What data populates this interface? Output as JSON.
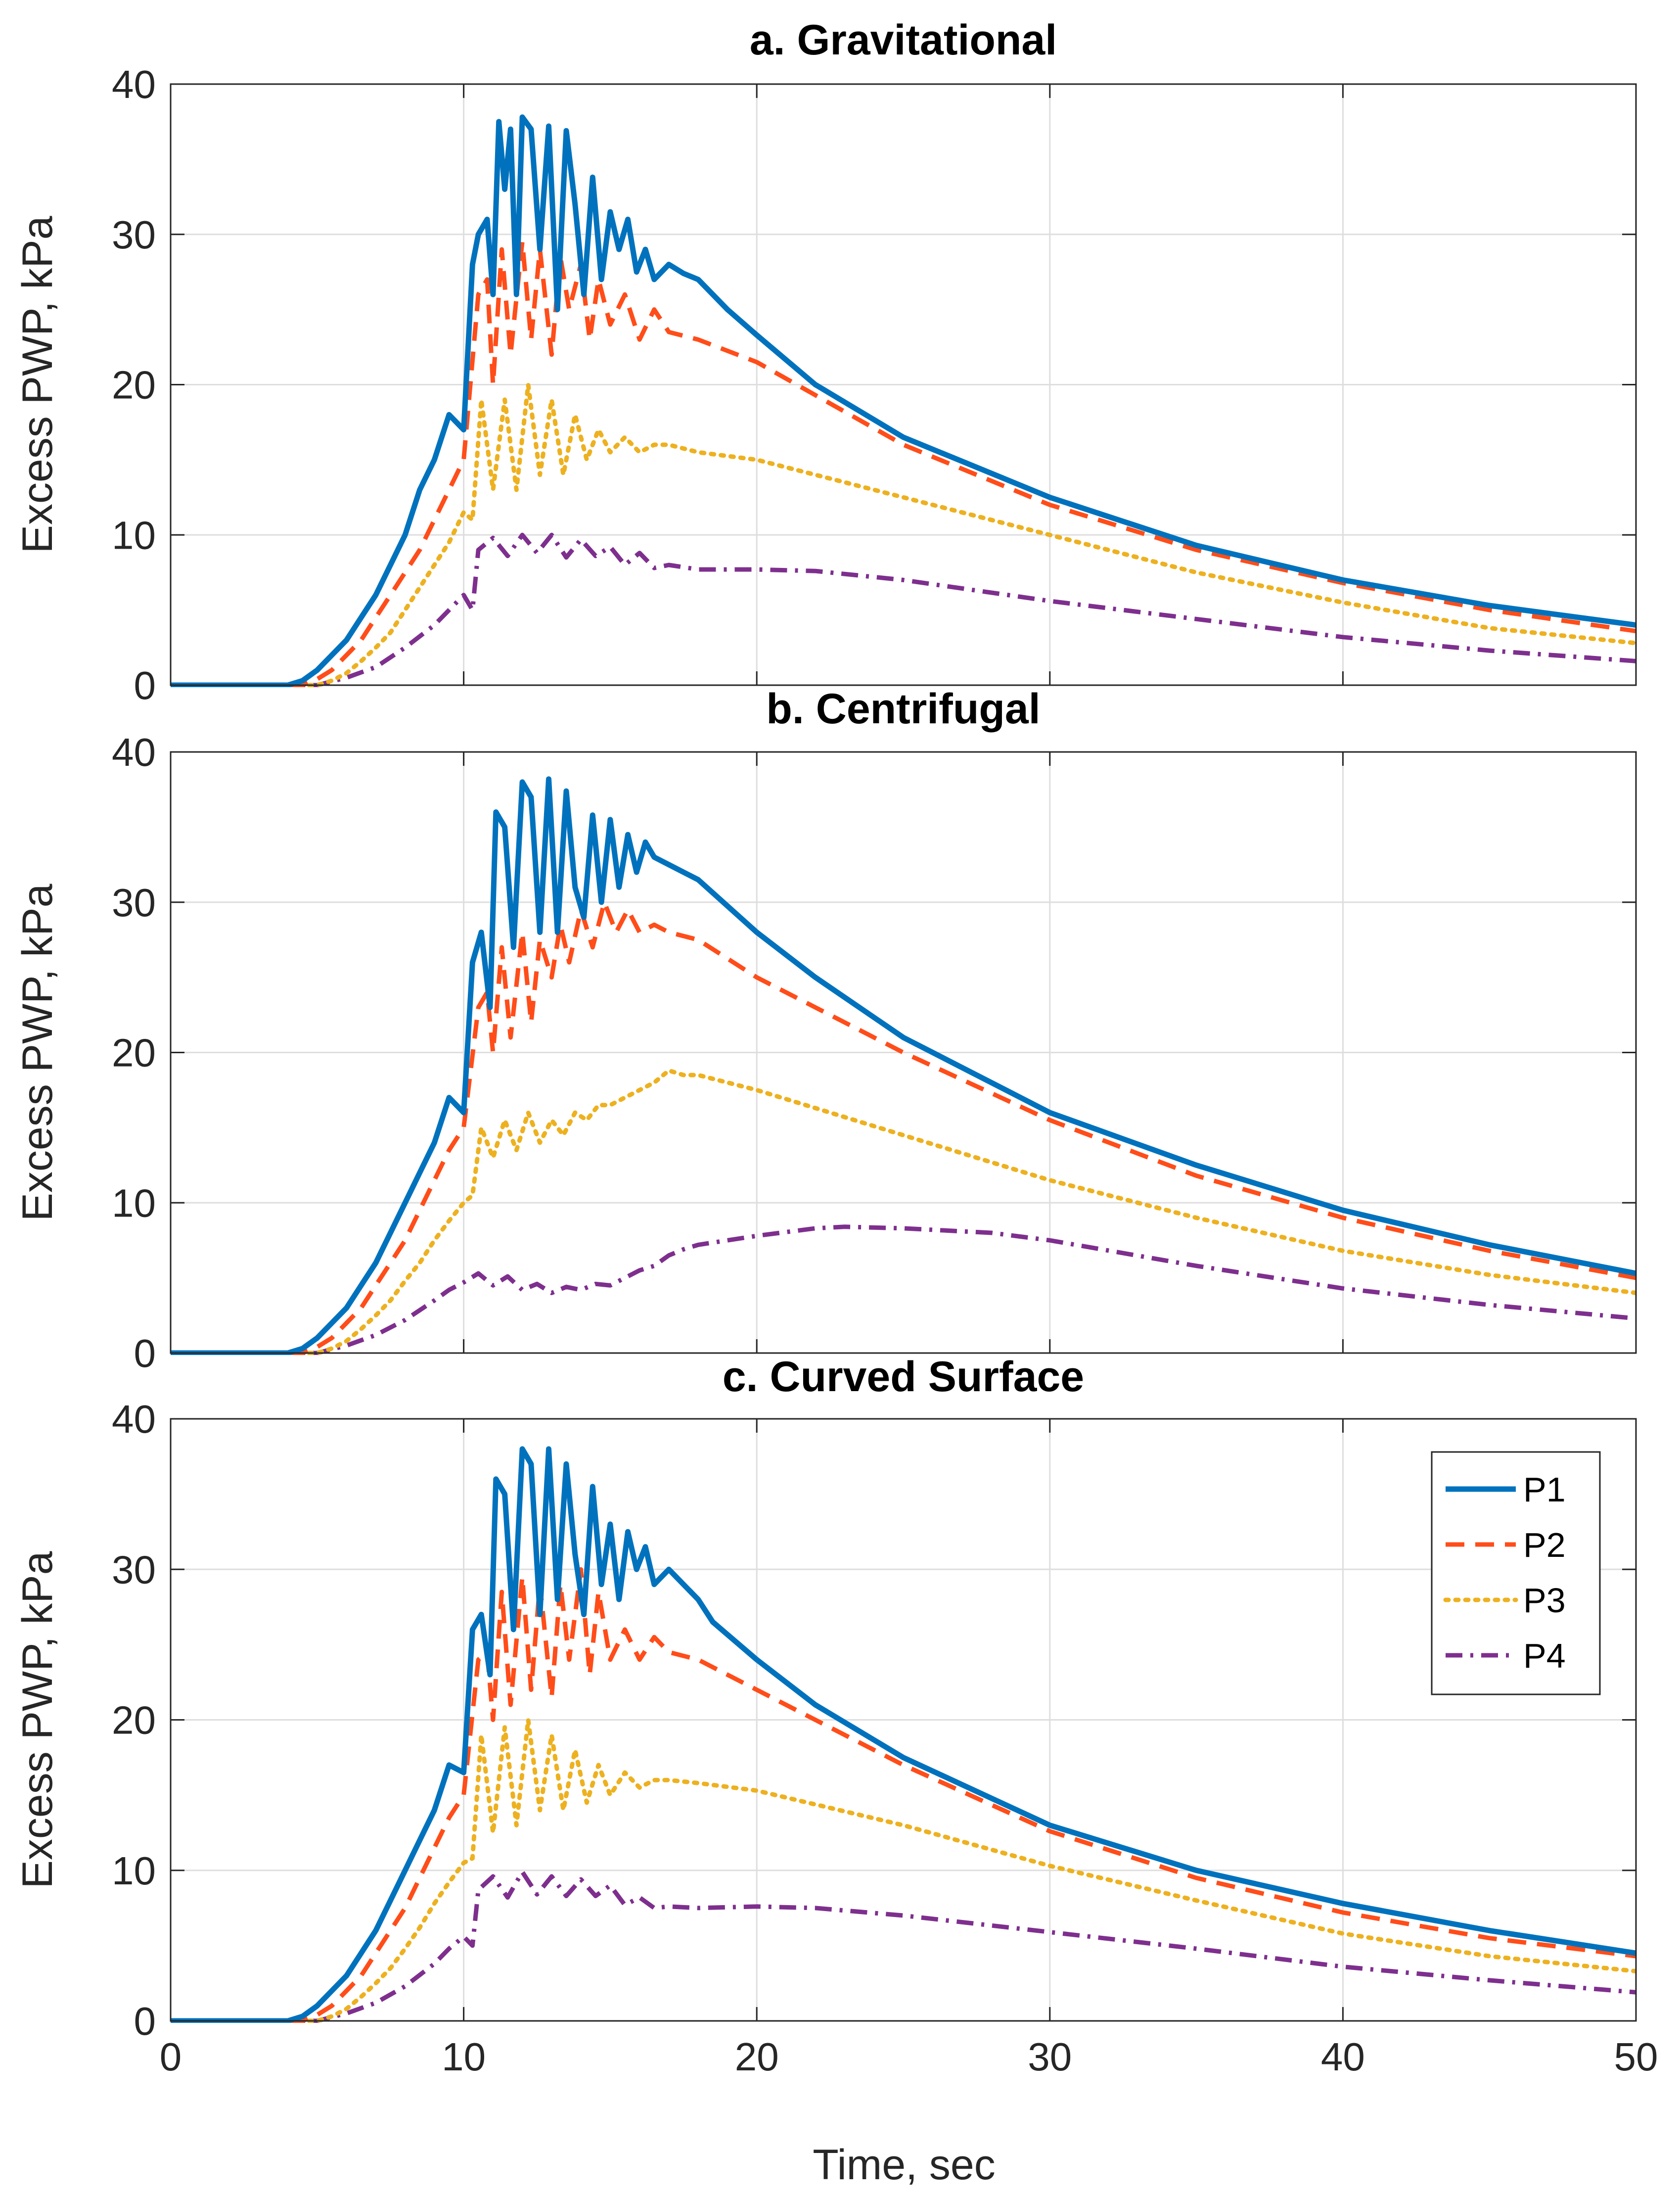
{
  "figure": {
    "xlabel": "Time, sec",
    "legend": {
      "placement": "top-right of panel c",
      "entries": [
        "P1",
        "P2",
        "P3",
        "P4"
      ]
    },
    "series_style": [
      {
        "name": "P1",
        "color": "#0072BD",
        "dash": "solid"
      },
      {
        "name": "P2",
        "color": "#FF4D1A",
        "dash": "dashed"
      },
      {
        "name": "P3",
        "color": "#EDB120",
        "dash": "dotted"
      },
      {
        "name": "P4",
        "color": "#7E2F8E",
        "dash": "dash-dot"
      }
    ]
  },
  "chart_data": [
    {
      "type": "line",
      "title": "a. Gravitational",
      "xlabel": "",
      "ylabel": "Excess PWP, kPa",
      "xlim": [
        0,
        50
      ],
      "ylim": [
        0,
        40
      ],
      "xticks": [
        0,
        10,
        20,
        30,
        40,
        50
      ],
      "yticks": [
        0,
        10,
        20,
        30,
        40
      ],
      "grid": true,
      "x_tick_labels_shown": false,
      "series": [
        {
          "name": "P1",
          "x": [
            0,
            4,
            4.5,
            5,
            5.5,
            6,
            6.5,
            7,
            7.5,
            8,
            8.5,
            9,
            9.5,
            10,
            10.3,
            10.5,
            10.8,
            11,
            11.2,
            11.4,
            11.6,
            11.8,
            12,
            12.3,
            12.6,
            12.9,
            13.2,
            13.5,
            13.8,
            14.1,
            14.4,
            14.7,
            15,
            15.3,
            15.6,
            15.9,
            16.2,
            16.5,
            17,
            17.5,
            18,
            19,
            20,
            22,
            25,
            30,
            35,
            40,
            45,
            50
          ],
          "y": [
            0,
            0,
            0.3,
            1,
            2,
            3,
            4.5,
            6,
            8,
            10,
            13,
            15,
            18,
            17,
            28,
            30,
            31,
            26,
            37.5,
            33,
            37,
            26,
            37.8,
            37,
            29,
            37.2,
            25,
            36.9,
            32,
            26,
            33.8,
            27,
            31.5,
            29,
            31,
            27.5,
            29,
            27,
            28,
            27.4,
            27,
            25,
            23.3,
            20,
            16.5,
            12.5,
            9.3,
            7,
            5.3,
            4
          ]
        },
        {
          "name": "P2",
          "x": [
            0,
            4.5,
            5,
            5.5,
            6,
            6.5,
            7,
            7.5,
            8,
            8.5,
            9,
            9.5,
            10,
            10.5,
            10.8,
            11,
            11.3,
            11.6,
            12,
            12.3,
            12.6,
            13,
            13.3,
            13.6,
            14,
            14.3,
            14.6,
            15,
            15.5,
            16,
            16.5,
            17,
            18,
            20,
            25,
            30,
            35,
            40,
            45,
            50
          ],
          "y": [
            0,
            0,
            0.4,
            1,
            2,
            3,
            4.5,
            6,
            7.5,
            9,
            11,
            13,
            15,
            26,
            27,
            20,
            29,
            22,
            29.5,
            23,
            29,
            22,
            28.5,
            25,
            28,
            23,
            27,
            24,
            26,
            23,
            25,
            23.5,
            23,
            21.5,
            16,
            12,
            9,
            6.8,
            5,
            3.6
          ]
        },
        {
          "name": "P3",
          "x": [
            0,
            5,
            5.5,
            6,
            6.5,
            7,
            7.5,
            8,
            8.5,
            9,
            9.5,
            10,
            10.3,
            10.6,
            11,
            11.4,
            11.8,
            12.2,
            12.6,
            13,
            13.4,
            13.8,
            14.2,
            14.6,
            15,
            15.5,
            16,
            16.5,
            17,
            18,
            20,
            25,
            30,
            35,
            40,
            45,
            50
          ],
          "y": [
            0,
            0,
            0.3,
            0.8,
            1.6,
            2.5,
            3.5,
            5,
            6.5,
            8,
            9.5,
            11.5,
            11,
            19,
            13,
            19,
            13,
            20,
            14,
            19,
            14,
            18,
            15,
            17,
            15.5,
            16.5,
            15.5,
            16,
            16,
            15.5,
            15,
            12.5,
            10,
            7.5,
            5.5,
            3.8,
            2.8
          ]
        },
        {
          "name": "P4",
          "x": [
            0,
            5,
            6,
            7,
            8,
            9,
            9.5,
            10,
            10.3,
            10.5,
            11,
            11.5,
            12,
            12.5,
            13,
            13.5,
            14,
            14.5,
            15,
            15.5,
            16,
            16.5,
            17,
            18,
            20,
            22,
            25,
            30,
            35,
            40,
            45,
            50
          ],
          "y": [
            0,
            0,
            0.5,
            1.2,
            2.5,
            4,
            5,
            6,
            5,
            9,
            9.8,
            8.6,
            10,
            8.8,
            10,
            8.5,
            9.7,
            8.6,
            9.2,
            8,
            8.8,
            7.8,
            8,
            7.7,
            7.7,
            7.6,
            7,
            5.6,
            4.4,
            3.2,
            2.3,
            1.6
          ]
        }
      ]
    },
    {
      "type": "line",
      "title": "b. Centrifugal",
      "xlabel": "",
      "ylabel": "Excess PWP, kPa",
      "xlim": [
        0,
        50
      ],
      "ylim": [
        0,
        40
      ],
      "xticks": [
        0,
        10,
        20,
        30,
        40,
        50
      ],
      "yticks": [
        0,
        10,
        20,
        30,
        40
      ],
      "grid": true,
      "x_tick_labels_shown": false,
      "series": [
        {
          "name": "P1",
          "x": [
            0,
            4,
            4.5,
            5,
            5.5,
            6,
            6.5,
            7,
            7.5,
            8,
            8.5,
            9,
            9.5,
            10,
            10.3,
            10.6,
            10.9,
            11.1,
            11.4,
            11.7,
            12,
            12.3,
            12.6,
            12.9,
            13.2,
            13.5,
            13.8,
            14.1,
            14.4,
            14.7,
            15,
            15.3,
            15.6,
            15.9,
            16.2,
            16.5,
            17,
            17.5,
            18,
            20,
            22,
            25,
            30,
            35,
            40,
            45,
            50
          ],
          "y": [
            0,
            0,
            0.3,
            1,
            2,
            3,
            4.5,
            6,
            8,
            10,
            12,
            14,
            17,
            16,
            26,
            28,
            23,
            36,
            35,
            27,
            38,
            37,
            28,
            38.2,
            28,
            37.4,
            31,
            29,
            35.8,
            30,
            35.5,
            31,
            34.5,
            32,
            34,
            33,
            32.5,
            32,
            31.5,
            28,
            25,
            21,
            16,
            12.5,
            9.5,
            7.2,
            5.3
          ]
        },
        {
          "name": "P2",
          "x": [
            0,
            4.5,
            5,
            5.5,
            6,
            6.5,
            7,
            7.5,
            8,
            8.5,
            9,
            9.5,
            10,
            10.5,
            10.8,
            11,
            11.3,
            11.6,
            12,
            12.3,
            12.6,
            13,
            13.3,
            13.6,
            14,
            14.4,
            14.8,
            15.2,
            15.6,
            16,
            16.5,
            17,
            18,
            20,
            25,
            30,
            35,
            40,
            45,
            50
          ],
          "y": [
            0,
            0,
            0.4,
            1,
            2,
            3,
            4.5,
            6,
            7.5,
            9.5,
            11.5,
            13.5,
            15,
            23,
            24,
            20,
            27,
            21,
            28,
            22,
            27.5,
            25,
            28.5,
            26,
            29.5,
            27,
            30,
            28,
            29.5,
            28,
            28.5,
            28,
            27.5,
            25,
            20,
            15.5,
            11.8,
            9,
            6.8,
            5
          ]
        },
        {
          "name": "P3",
          "x": [
            0,
            5,
            5.5,
            6,
            6.5,
            7,
            7.5,
            8,
            8.5,
            9,
            9.5,
            10,
            10.3,
            10.6,
            11,
            11.4,
            11.8,
            12.2,
            12.6,
            13,
            13.4,
            13.8,
            14.2,
            14.6,
            15,
            15.5,
            16,
            16.5,
            17,
            17.5,
            18,
            20,
            25,
            30,
            35,
            40,
            45,
            50
          ],
          "y": [
            0,
            0,
            0.3,
            0.8,
            1.6,
            2.5,
            3.5,
            4.8,
            6,
            7.5,
            8.8,
            10,
            10.5,
            15,
            13,
            15.5,
            13.5,
            16,
            14,
            15.5,
            14.5,
            16,
            15.5,
            16.5,
            16.5,
            17,
            17.5,
            18,
            18.8,
            18.5,
            18.5,
            17.5,
            14.5,
            11.5,
            9,
            6.8,
            5.2,
            4
          ]
        },
        {
          "name": "P4",
          "x": [
            0,
            5,
            6,
            7,
            8,
            9,
            9.5,
            10,
            10.5,
            11,
            11.5,
            12,
            12.5,
            13,
            13.5,
            14,
            14.5,
            15,
            15.5,
            16,
            16.5,
            17,
            17.5,
            18,
            20,
            22,
            23,
            25,
            28,
            30,
            35,
            40,
            45,
            50
          ],
          "y": [
            0,
            0,
            0.5,
            1.2,
            2.2,
            3.5,
            4.2,
            4.7,
            5.3,
            4.5,
            5.1,
            4.2,
            4.6,
            4,
            4.4,
            4.2,
            4.6,
            4.5,
            5,
            5.5,
            5.8,
            6.5,
            6.9,
            7.2,
            7.8,
            8.3,
            8.4,
            8.3,
            8,
            7.5,
            5.8,
            4.3,
            3.2,
            2.3
          ]
        }
      ]
    },
    {
      "type": "line",
      "title": "c. Curved Surface",
      "xlabel": "Time, sec",
      "ylabel": "Excess PWP, kPa",
      "xlim": [
        0,
        50
      ],
      "ylim": [
        0,
        40
      ],
      "xticks": [
        0,
        10,
        20,
        30,
        40,
        50
      ],
      "yticks": [
        0,
        10,
        20,
        30,
        40
      ],
      "grid": true,
      "x_tick_labels_shown": true,
      "series": [
        {
          "name": "P1",
          "x": [
            0,
            4,
            4.5,
            5,
            5.5,
            6,
            6.5,
            7,
            7.5,
            8,
            8.5,
            9,
            9.5,
            10,
            10.3,
            10.6,
            10.9,
            11.1,
            11.4,
            11.7,
            12,
            12.3,
            12.6,
            12.9,
            13.2,
            13.5,
            13.8,
            14.1,
            14.4,
            14.7,
            15,
            15.3,
            15.6,
            15.9,
            16.2,
            16.5,
            17,
            17.5,
            18,
            18.5,
            20,
            22,
            25,
            30,
            35,
            40,
            45,
            50
          ],
          "y": [
            0,
            0,
            0.3,
            1,
            2,
            3,
            4.5,
            6,
            8,
            10,
            12,
            14,
            17,
            16.5,
            26,
            27,
            23,
            36,
            35,
            26,
            38,
            37,
            27,
            38,
            28,
            37,
            31,
            27,
            35.5,
            29,
            33,
            28,
            32.5,
            30,
            31.5,
            29,
            30,
            29,
            28,
            26.5,
            24,
            21,
            17.5,
            13,
            10,
            7.8,
            6,
            4.5
          ]
        },
        {
          "name": "P2",
          "x": [
            0,
            4.5,
            5,
            5.5,
            6,
            6.5,
            7,
            7.5,
            8,
            8.5,
            9,
            9.5,
            10,
            10.5,
            10.8,
            11,
            11.3,
            11.6,
            12,
            12.3,
            12.6,
            13,
            13.3,
            13.6,
            14,
            14.3,
            14.6,
            15,
            15.5,
            16,
            16.5,
            17,
            18,
            20,
            25,
            30,
            35,
            40,
            45,
            50
          ],
          "y": [
            0,
            0,
            0.4,
            1,
            2,
            3,
            4.5,
            6,
            7.5,
            9.5,
            11.5,
            13.5,
            15,
            24,
            24.5,
            20,
            28.5,
            21,
            29.5,
            22,
            29,
            21.5,
            29,
            24,
            30,
            23,
            28.5,
            24,
            26,
            24,
            25.5,
            24.5,
            24,
            22,
            17,
            12.6,
            9.5,
            7.2,
            5.5,
            4.3
          ]
        },
        {
          "name": "P3",
          "x": [
            0,
            5,
            5.5,
            6,
            6.5,
            7,
            7.5,
            8,
            8.5,
            9,
            9.5,
            10,
            10.3,
            10.6,
            11,
            11.4,
            11.8,
            12.2,
            12.6,
            13,
            13.4,
            13.8,
            14.2,
            14.6,
            15,
            15.5,
            16,
            16.5,
            17,
            18,
            20,
            25,
            30,
            35,
            40,
            45,
            50
          ],
          "y": [
            0,
            0,
            0.3,
            0.8,
            1.6,
            2.5,
            3.5,
            4.8,
            6.2,
            7.8,
            9.2,
            10.5,
            10.8,
            19,
            12.5,
            19.5,
            13,
            20,
            14,
            19,
            14,
            18,
            14.5,
            17,
            15,
            16.5,
            15.5,
            16,
            16,
            15.8,
            15.3,
            13,
            10.3,
            8,
            5.8,
            4.3,
            3.3
          ]
        },
        {
          "name": "P4",
          "x": [
            0,
            5,
            6,
            7,
            8,
            9,
            9.5,
            10,
            10.3,
            10.5,
            11,
            11.5,
            12,
            12.5,
            13,
            13.5,
            14,
            14.5,
            15,
            15.5,
            16,
            16.5,
            17,
            18,
            20,
            22,
            25,
            30,
            35,
            40,
            45,
            50
          ],
          "y": [
            0,
            0,
            0.5,
            1.2,
            2.3,
            3.8,
            4.8,
            5.6,
            5,
            8.7,
            9.6,
            8.2,
            9.9,
            8.4,
            9.6,
            8.3,
            9.4,
            8.3,
            9,
            7.7,
            8.2,
            7.5,
            7.6,
            7.5,
            7.6,
            7.5,
            7,
            5.9,
            4.8,
            3.6,
            2.7,
            1.9
          ]
        }
      ]
    }
  ]
}
